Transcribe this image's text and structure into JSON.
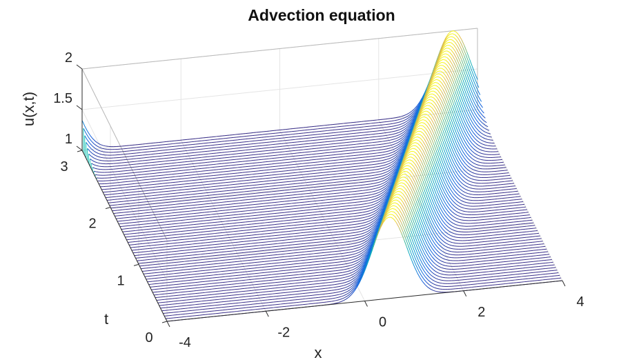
{
  "chart_data": {
    "type": "surface-mesh",
    "title": "Advection equation",
    "xlabel": "x",
    "ylabel": "t",
    "zlabel": "u(x,t)",
    "x_range": [
      -4,
      4
    ],
    "t_range": [
      0,
      3
    ],
    "z_range": [
      1,
      2
    ],
    "x_ticks": [
      "-4",
      "-2",
      "0",
      "2",
      "4"
    ],
    "t_ticks": [
      "0",
      "1",
      "2",
      "3"
    ],
    "z_ticks": [
      "1",
      "1.5",
      "2"
    ],
    "colormap": "parula",
    "grid": true,
    "function": "u(x,t) = 1 + exp(-4*((x - 0.5 - t) wrapped to [-4,4))^2)",
    "pulse_initial_center_x": 0.5,
    "advection_speed": 1,
    "pulse_amplitude": 1,
    "pulse_baseline": 1,
    "boundary": "periodic",
    "time_lines": 66
  }
}
